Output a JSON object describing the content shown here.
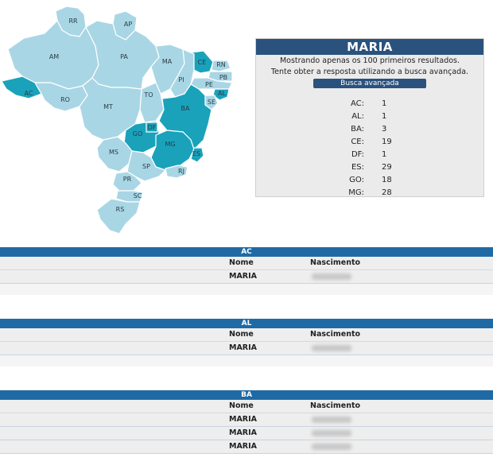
{
  "map": {
    "highlight_color": "#1aa2bb",
    "base_color": "#a9d6e5",
    "states": [
      {
        "uf": "RR",
        "highlighted": false
      },
      {
        "uf": "AP",
        "highlighted": false
      },
      {
        "uf": "AM",
        "highlighted": false
      },
      {
        "uf": "PA",
        "highlighted": false
      },
      {
        "uf": "MA",
        "highlighted": false
      },
      {
        "uf": "CE",
        "highlighted": true
      },
      {
        "uf": "RN",
        "highlighted": false
      },
      {
        "uf": "PB",
        "highlighted": false
      },
      {
        "uf": "PE",
        "highlighted": false
      },
      {
        "uf": "PI",
        "highlighted": false
      },
      {
        "uf": "AL",
        "highlighted": true
      },
      {
        "uf": "SE",
        "highlighted": false
      },
      {
        "uf": "AC",
        "highlighted": true
      },
      {
        "uf": "RO",
        "highlighted": false
      },
      {
        "uf": "TO",
        "highlighted": false
      },
      {
        "uf": "BA",
        "highlighted": true
      },
      {
        "uf": "MT",
        "highlighted": false
      },
      {
        "uf": "DF",
        "highlighted": true
      },
      {
        "uf": "GO",
        "highlighted": true
      },
      {
        "uf": "MG",
        "highlighted": true
      },
      {
        "uf": "MS",
        "highlighted": false
      },
      {
        "uf": "ES",
        "highlighted": true
      },
      {
        "uf": "SP",
        "highlighted": false
      },
      {
        "uf": "RJ",
        "highlighted": false
      },
      {
        "uf": "PR",
        "highlighted": false
      },
      {
        "uf": "SC",
        "highlighted": false
      },
      {
        "uf": "RS",
        "highlighted": false
      }
    ]
  },
  "panel": {
    "name": "MARIA",
    "message1": "Mostrando apenas os 100 primeiros resultados.",
    "message2": "Tente obter a resposta utilizando a busca avançada.",
    "advanced_button": "Busca avançada",
    "counts": [
      {
        "uf": "AC:",
        "n": "1"
      },
      {
        "uf": "AL:",
        "n": "1"
      },
      {
        "uf": "BA:",
        "n": "3"
      },
      {
        "uf": "CE:",
        "n": "19"
      },
      {
        "uf": "DF:",
        "n": "1"
      },
      {
        "uf": "ES:",
        "n": "29"
      },
      {
        "uf": "GO:",
        "n": "18"
      },
      {
        "uf": "MG:",
        "n": "28"
      }
    ]
  },
  "sections": [
    {
      "uf": "AC",
      "col_name": "Nome",
      "col_birth": "Nascimento",
      "rows": [
        "MARIA"
      ]
    },
    {
      "uf": "AL",
      "col_name": "Nome",
      "col_birth": "Nascimento",
      "rows": [
        "MARIA"
      ]
    },
    {
      "uf": "BA",
      "col_name": "Nome",
      "col_birth": "Nascimento",
      "rows": [
        "MARIA",
        "MARIA",
        "MARIA"
      ]
    }
  ]
}
